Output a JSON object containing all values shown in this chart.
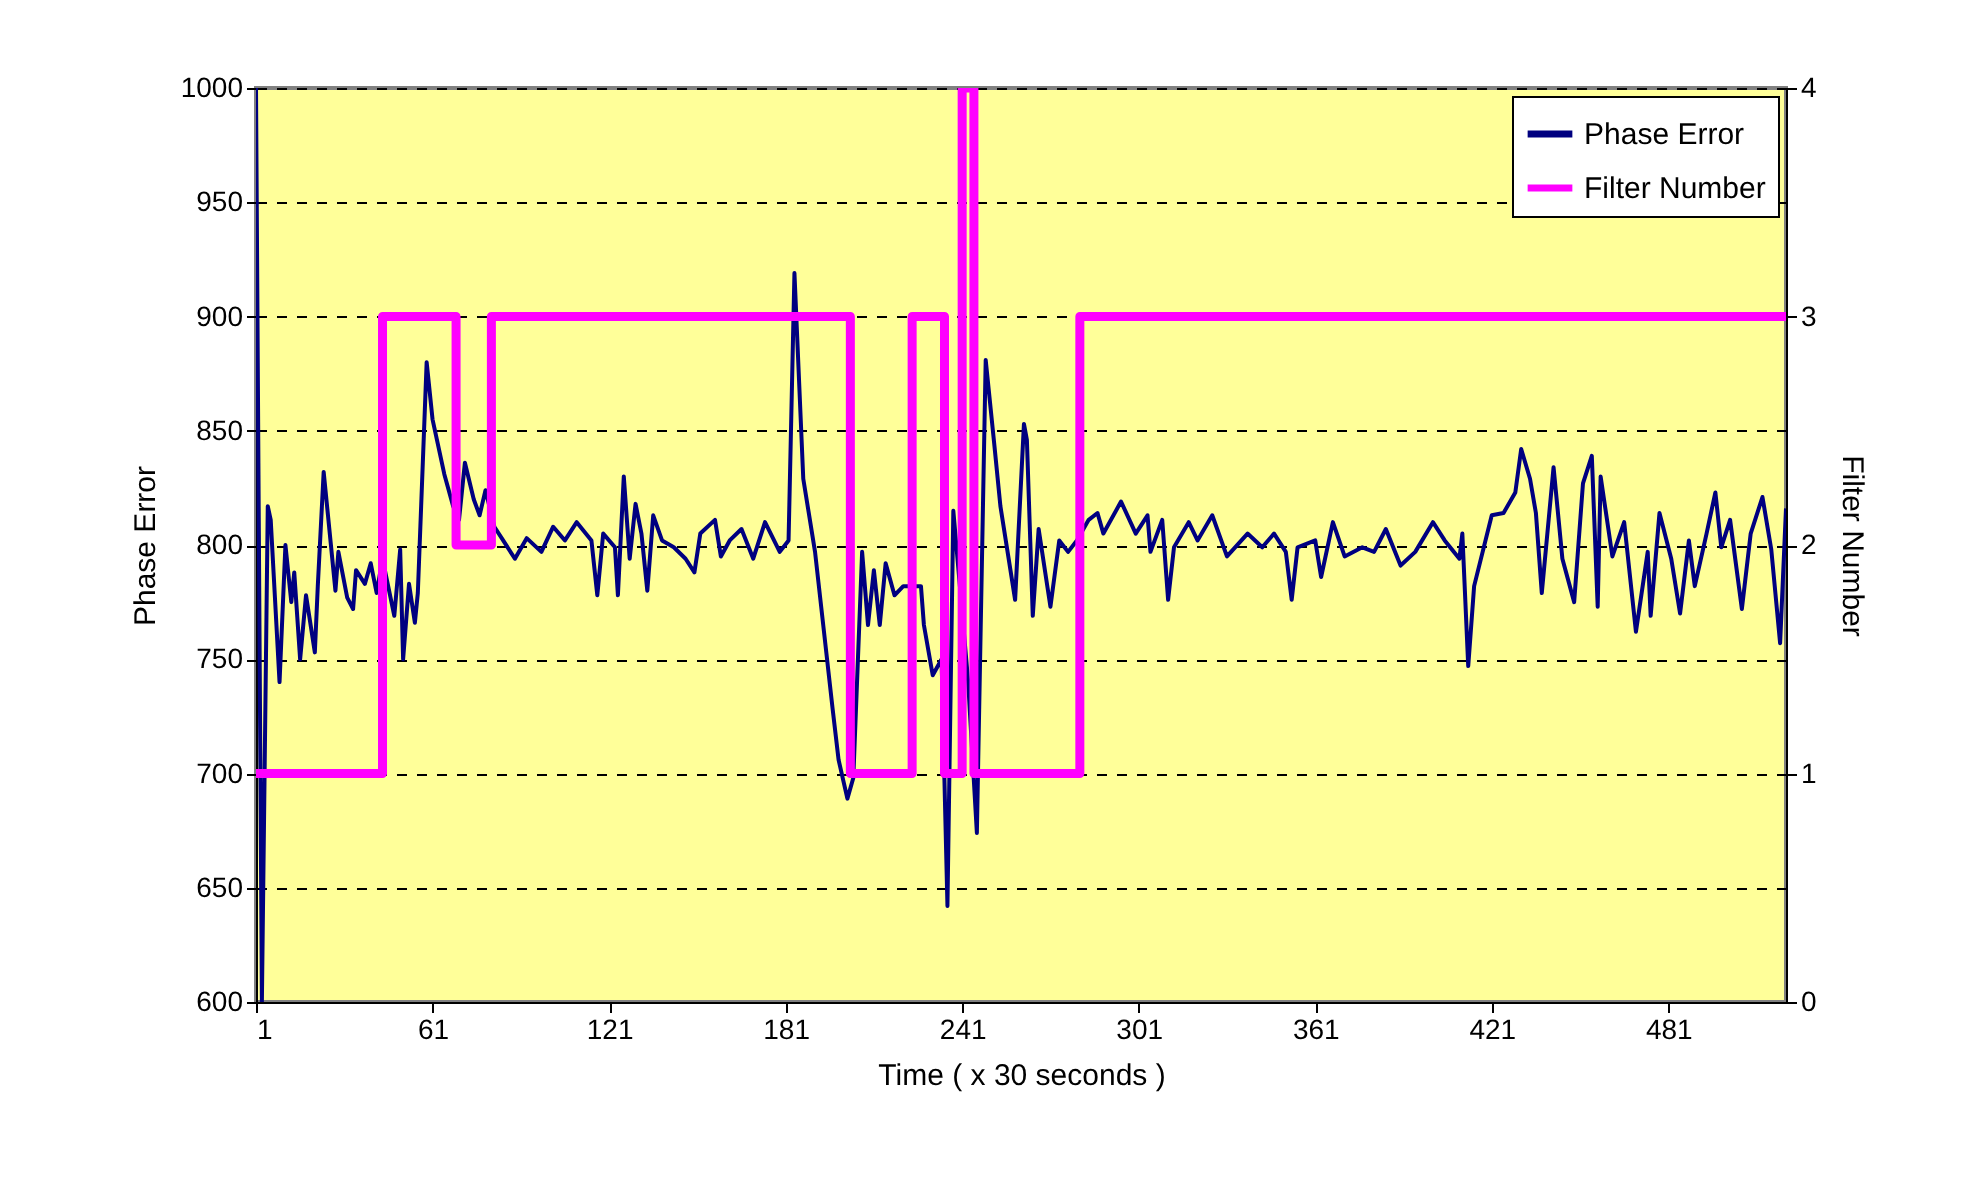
{
  "chart_data": {
    "type": "line",
    "xlabel": "Time ( x 30 seconds )",
    "ylabel": "Phase Error",
    "y2label": "Filter Number",
    "xlim": [
      1,
      521
    ],
    "xticks": [
      1,
      61,
      121,
      181,
      241,
      301,
      361,
      421,
      481
    ],
    "ylim": [
      600,
      1000
    ],
    "yticks": [
      600,
      650,
      700,
      750,
      800,
      850,
      900,
      950,
      1000
    ],
    "y2lim": [
      0,
      4
    ],
    "y2ticks": [
      0,
      1,
      2,
      3,
      4
    ],
    "grid": "y",
    "legend": "top right",
    "series": [
      {
        "name": "Phase Error",
        "type": "line",
        "color": "#000080",
        "x": [
          1,
          3,
          5,
          6,
          9,
          11,
          13,
          14,
          16,
          18,
          21,
          22,
          24,
          28,
          29,
          32,
          34,
          35,
          38,
          40,
          42,
          44,
          48,
          50,
          51,
          53,
          55,
          56,
          59,
          61,
          65,
          68,
          70,
          72,
          75,
          77,
          79,
          82,
          85,
          89,
          93,
          98,
          102,
          106,
          110,
          115,
          117,
          119,
          123,
          124,
          126,
          128,
          130,
          132,
          134,
          136,
          139,
          143,
          147,
          150,
          152,
          157,
          159,
          162,
          166,
          170,
          174,
          179,
          182,
          184,
          187,
          191,
          197,
          199,
          202,
          204,
          207,
          209,
          211,
          213,
          215,
          218,
          221,
          227,
          228,
          231,
          234,
          236,
          238,
          243,
          246,
          249,
          252,
          254,
          259,
          262,
          263,
          265,
          267,
          271,
          274,
          277,
          280,
          284,
          287,
          289,
          295,
          300,
          304,
          305,
          309,
          311,
          313,
          318,
          321,
          326,
          331,
          338,
          343,
          347,
          351,
          353,
          355,
          361,
          363,
          367,
          371,
          377,
          381,
          385,
          390,
          395,
          401,
          405,
          410,
          411,
          413,
          415,
          421,
          425,
          429,
          431,
          434,
          436,
          438,
          442,
          445,
          449,
          452,
          455,
          457,
          458,
          462,
          466,
          470,
          474,
          475,
          478,
          482,
          485,
          488,
          490,
          494,
          497,
          499,
          502,
          506,
          509,
          513,
          516,
          519,
          521
        ],
        "values": [
          1000,
          600,
          817,
          811,
          740,
          800,
          775,
          788,
          750,
          778,
          753,
          782,
          832,
          780,
          797,
          777,
          772,
          789,
          783,
          792,
          779,
          794,
          769,
          798,
          750,
          783,
          766,
          779,
          880,
          855,
          831,
          817,
          811,
          836,
          820,
          813,
          824,
          808,
          802,
          794,
          803,
          797,
          808,
          802,
          810,
          802,
          778,
          805,
          799,
          778,
          830,
          794,
          818,
          805,
          780,
          813,
          802,
          799,
          794,
          788,
          805,
          811,
          795,
          802,
          807,
          794,
          810,
          797,
          802,
          919,
          829,
          797,
          728,
          706,
          689,
          698,
          797,
          765,
          789,
          765,
          792,
          778,
          782,
          782,
          765,
          743,
          750,
          642,
          815,
          741,
          674,
          881,
          843,
          817,
          776,
          853,
          846,
          769,
          807,
          773,
          802,
          797,
          802,
          811,
          814,
          805,
          819,
          805,
          813,
          797,
          811,
          776,
          799,
          810,
          802,
          813,
          795,
          805,
          799,
          805,
          797,
          776,
          799,
          802,
          786,
          810,
          795,
          799,
          797,
          807,
          791,
          797,
          810,
          802,
          794,
          805,
          747,
          782,
          813,
          814,
          823,
          842,
          829,
          814,
          779,
          834,
          794,
          775,
          827,
          839,
          773,
          830,
          795,
          810,
          762,
          797,
          769,
          814,
          794,
          770,
          802,
          782,
          805,
          823,
          799,
          811,
          772,
          805,
          821,
          798,
          757,
          816
        ]
      },
      {
        "name": "Filter Number",
        "type": "step",
        "axis": "y2",
        "color": "#ff00ff",
        "x": [
          1,
          44,
          69,
          81,
          203,
          224,
          235,
          241,
          245,
          281,
          521
        ],
        "values": [
          1,
          3,
          2,
          3,
          1,
          3,
          1,
          4,
          1,
          3,
          3
        ]
      }
    ]
  }
}
